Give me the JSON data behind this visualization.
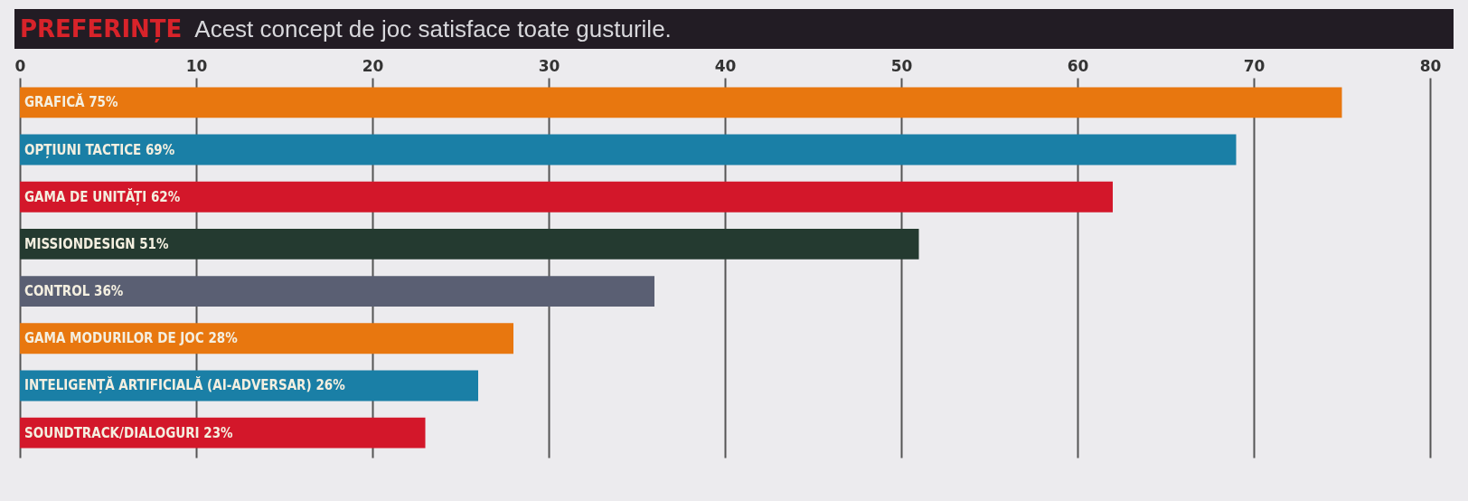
{
  "chart_data": {
    "type": "bar",
    "orientation": "horizontal",
    "title": "PREFERINȚE",
    "subtitle": "Acest concept de joc satisface toate gusturile.",
    "categories": [
      "GRAFICĂ",
      "OPȚIUNI TACTICE",
      "GAMA DE UNITĂȚI",
      "MISSIONDESIGN",
      "CONTROL",
      "GAMA MODURILOR DE JOC",
      "INTELIGENȚĂ ARTIFICIALĂ (AI-ADVERSAR)",
      "SOUNDTRACK/DIALOGURI"
    ],
    "values": [
      75,
      69,
      62,
      51,
      36,
      28,
      26,
      23
    ],
    "value_labels": [
      "75%",
      "69%",
      "62%",
      "51%",
      "36%",
      "28%",
      "26%",
      "23%"
    ],
    "colors": [
      "#e8770f",
      "#1a7fa6",
      "#d3172a",
      "#243a30",
      "#5a5f73",
      "#e8770f",
      "#1a7fa6",
      "#d3172a"
    ],
    "xlim": [
      0,
      80
    ],
    "xticks": [
      0,
      10,
      20,
      30,
      40,
      50,
      60,
      70,
      80
    ],
    "grid": "x"
  }
}
